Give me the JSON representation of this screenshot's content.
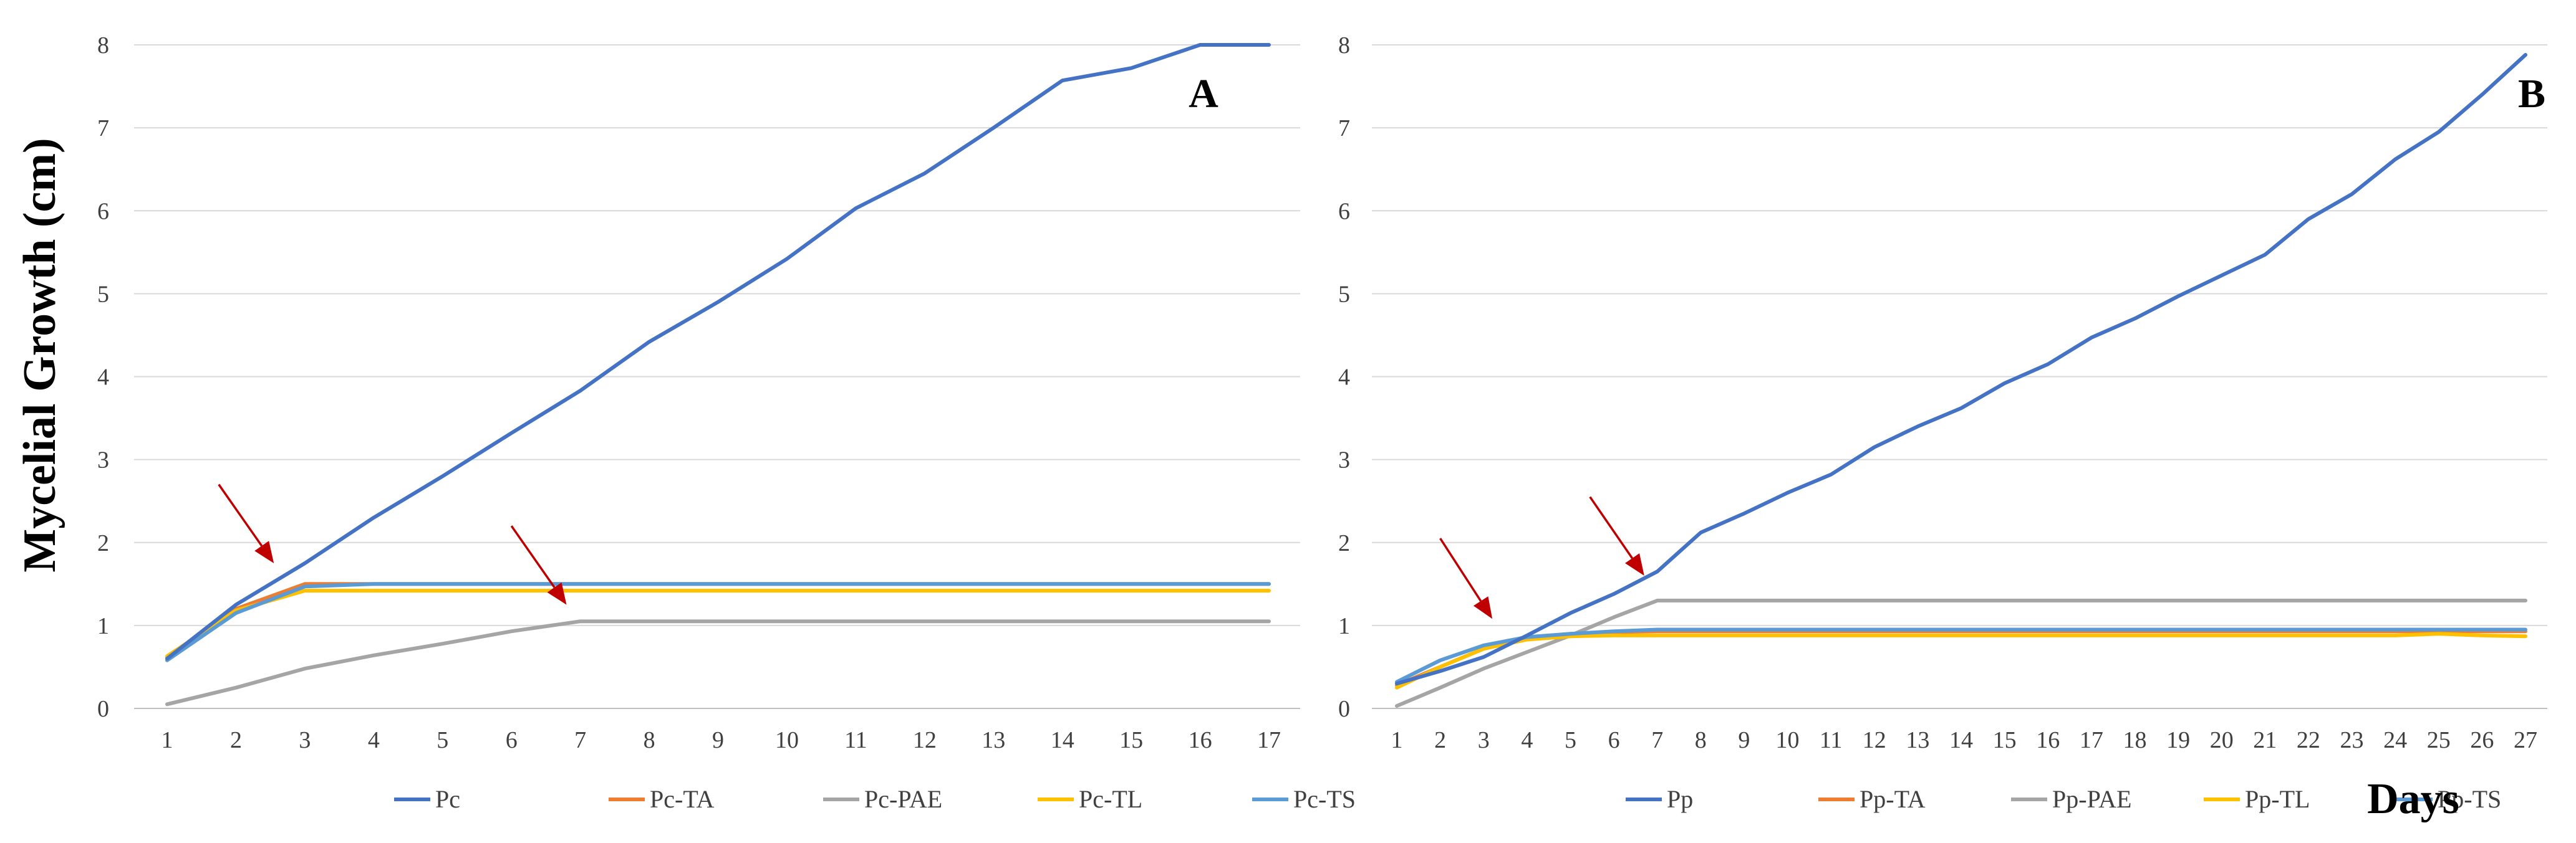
{
  "figure": {
    "ylabel": "Mycelial Growth (cm)",
    "xlabel": "Days"
  },
  "chart_data": [
    {
      "type": "line",
      "panel": "A",
      "title": "",
      "xlabel": "",
      "ylabel": "Mycelial Growth (cm)",
      "ylim": [
        0,
        8
      ],
      "yticks": [
        0,
        1,
        2,
        3,
        4,
        5,
        6,
        7,
        8
      ],
      "grid": true,
      "legend": "bottom",
      "x": [
        1,
        2,
        3,
        4,
        5,
        6,
        7,
        8,
        9,
        10,
        11,
        12,
        13,
        14,
        15,
        16,
        17
      ],
      "series": [
        {
          "name": "Pc",
          "color": "#4472C4",
          "values": [
            0.6,
            1.25,
            1.75,
            2.3,
            2.8,
            3.32,
            3.83,
            4.42,
            4.9,
            5.42,
            6.03,
            6.45,
            7.0,
            7.57,
            7.72,
            8.0,
            8.0
          ]
        },
        {
          "name": "Pc-TA",
          "color": "#ED7D31",
          "values": [
            0.62,
            1.2,
            1.5,
            1.5,
            1.5,
            1.5,
            1.5,
            1.5,
            1.5,
            1.5,
            1.5,
            1.5,
            1.5,
            1.5,
            1.5,
            1.5,
            1.5
          ]
        },
        {
          "name": "Pc-PAE",
          "color": "#A5A5A5",
          "values": [
            0.05,
            0.25,
            0.48,
            0.64,
            0.78,
            0.93,
            1.05,
            1.05,
            1.05,
            1.05,
            1.05,
            1.05,
            1.05,
            1.05,
            1.05,
            1.05,
            1.05
          ]
        },
        {
          "name": "Pc-TL",
          "color": "#FFC000",
          "values": [
            0.63,
            1.18,
            1.42,
            1.42,
            1.42,
            1.42,
            1.42,
            1.42,
            1.42,
            1.42,
            1.42,
            1.42,
            1.42,
            1.42,
            1.42,
            1.42,
            1.42
          ]
        },
        {
          "name": "Pc-TS",
          "color": "#5B9BD5",
          "values": [
            0.58,
            1.15,
            1.47,
            1.5,
            1.5,
            1.5,
            1.5,
            1.5,
            1.5,
            1.5,
            1.5,
            1.5,
            1.5,
            1.5,
            1.5,
            1.5,
            1.5
          ]
        }
      ],
      "arrows": [
        {
          "from": [
            1.75,
            2.7
          ],
          "to": [
            2.55,
            1.75
          ]
        },
        {
          "from": [
            6.0,
            2.2
          ],
          "to": [
            6.8,
            1.25
          ]
        }
      ]
    },
    {
      "type": "line",
      "panel": "B",
      "title": "",
      "xlabel": "Days",
      "ylabel": "",
      "ylim": [
        0,
        8
      ],
      "yticks": [
        0,
        1,
        2,
        3,
        4,
        5,
        6,
        7,
        8
      ],
      "grid": true,
      "legend": "bottom",
      "x": [
        1,
        2,
        3,
        4,
        5,
        6,
        7,
        8,
        9,
        10,
        11,
        12,
        13,
        14,
        15,
        16,
        17,
        18,
        19,
        20,
        21,
        22,
        23,
        24,
        25,
        26,
        27
      ],
      "series": [
        {
          "name": "Pp",
          "color": "#4472C4",
          "values": [
            0.3,
            0.45,
            0.62,
            0.88,
            1.15,
            1.38,
            1.65,
            2.12,
            2.35,
            2.6,
            2.82,
            3.15,
            3.4,
            3.62,
            3.92,
            4.15,
            4.47,
            4.7,
            4.97,
            5.22,
            5.47,
            5.9,
            6.2,
            6.62,
            6.95,
            7.4,
            7.88
          ]
        },
        {
          "name": "Pp-TA",
          "color": "#ED7D31",
          "values": [
            0.28,
            0.5,
            0.72,
            0.85,
            0.9,
            0.92,
            0.93,
            0.93,
            0.93,
            0.93,
            0.93,
            0.93,
            0.93,
            0.93,
            0.93,
            0.93,
            0.93,
            0.93,
            0.93,
            0.93,
            0.93,
            0.93,
            0.93,
            0.93,
            0.93,
            0.93,
            0.93
          ]
        },
        {
          "name": "Pp-PAE",
          "color": "#A5A5A5",
          "values": [
            0.03,
            0.25,
            0.48,
            0.68,
            0.88,
            1.1,
            1.3,
            1.3,
            1.3,
            1.3,
            1.3,
            1.3,
            1.3,
            1.3,
            1.3,
            1.3,
            1.3,
            1.3,
            1.3,
            1.3,
            1.3,
            1.3,
            1.3,
            1.3,
            1.3,
            1.3,
            1.3
          ]
        },
        {
          "name": "Pp-TL",
          "color": "#FFC000",
          "values": [
            0.25,
            0.5,
            0.72,
            0.83,
            0.87,
            0.88,
            0.88,
            0.88,
            0.88,
            0.88,
            0.88,
            0.88,
            0.88,
            0.88,
            0.88,
            0.88,
            0.88,
            0.88,
            0.88,
            0.88,
            0.88,
            0.88,
            0.88,
            0.88,
            0.9,
            0.88,
            0.87
          ]
        },
        {
          "name": "Pp-TS",
          "color": "#5B9BD5",
          "values": [
            0.32,
            0.58,
            0.76,
            0.86,
            0.9,
            0.93,
            0.95,
            0.95,
            0.95,
            0.95,
            0.95,
            0.95,
            0.95,
            0.95,
            0.95,
            0.95,
            0.95,
            0.95,
            0.95,
            0.95,
            0.95,
            0.95,
            0.95,
            0.95,
            0.95,
            0.95,
            0.95
          ]
        }
      ],
      "arrows": [
        {
          "from": [
            2.0,
            2.05
          ],
          "to": [
            3.2,
            1.08
          ]
        },
        {
          "from": [
            5.45,
            2.55
          ],
          "to": [
            6.7,
            1.6
          ]
        }
      ]
    }
  ]
}
